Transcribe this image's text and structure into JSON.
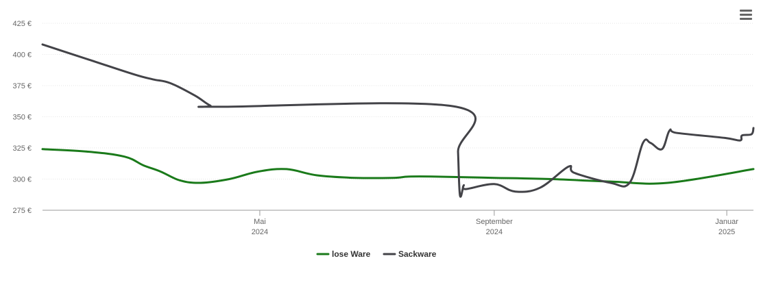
{
  "chart_data": {
    "type": "line",
    "y_ticks": [
      275,
      300,
      325,
      350,
      375,
      400,
      425
    ],
    "y_tick_labels": [
      "275 €",
      "300 €",
      "325 €",
      "350 €",
      "375 €",
      "400 €",
      "425 €"
    ],
    "ylim": [
      275,
      425
    ],
    "x_range": [
      "2024-01-08",
      "2025-01-15"
    ],
    "x_ticks": [
      {
        "date": "2024-05-01",
        "line1": "Mai",
        "line2": "2024"
      },
      {
        "date": "2024-09-01",
        "line1": "September",
        "line2": "2024"
      },
      {
        "date": "2025-01-01",
        "line1": "Januar",
        "line2": "2025"
      }
    ],
    "grid": true,
    "legend_position": "bottom-center",
    "series": [
      {
        "name": "lose Ware",
        "color": "#1a7a1a",
        "points": [
          [
            "2024-01-08",
            324
          ],
          [
            "2024-02-01",
            322
          ],
          [
            "2024-02-20",
            318
          ],
          [
            "2024-03-01",
            311
          ],
          [
            "2024-03-10",
            306
          ],
          [
            "2024-03-20",
            299
          ],
          [
            "2024-03-31",
            297
          ],
          [
            "2024-04-15",
            300
          ],
          [
            "2024-04-30",
            306
          ],
          [
            "2024-05-15",
            308
          ],
          [
            "2024-05-31",
            303
          ],
          [
            "2024-06-20",
            301
          ],
          [
            "2024-07-10",
            301
          ],
          [
            "2024-07-18",
            302
          ],
          [
            "2024-08-01",
            302
          ],
          [
            "2024-09-01",
            301
          ],
          [
            "2024-10-01",
            300
          ],
          [
            "2024-11-01",
            298
          ],
          [
            "2024-12-01",
            297
          ],
          [
            "2025-01-15",
            308
          ]
        ]
      },
      {
        "name": "Sackware",
        "color": "#434348",
        "points": [
          [
            "2024-01-08",
            408
          ],
          [
            "2024-02-01",
            396
          ],
          [
            "2024-02-25",
            384
          ],
          [
            "2024-03-06",
            380
          ],
          [
            "2024-03-15",
            377
          ],
          [
            "2024-03-28",
            367
          ],
          [
            "2024-04-05",
            359
          ],
          [
            "2024-04-10",
            358
          ],
          [
            "2024-08-12",
            358
          ],
          [
            "2024-08-13",
            322
          ],
          [
            "2024-08-14",
            287
          ],
          [
            "2024-08-16",
            295
          ],
          [
            "2024-08-17",
            292
          ],
          [
            "2024-09-01",
            296
          ],
          [
            "2024-09-12",
            290
          ],
          [
            "2024-09-25",
            293
          ],
          [
            "2024-10-10",
            310
          ],
          [
            "2024-10-13",
            305
          ],
          [
            "2024-11-01",
            297
          ],
          [
            "2024-11-11",
            297
          ],
          [
            "2024-11-18",
            329
          ],
          [
            "2024-11-22",
            329
          ],
          [
            "2024-11-28",
            324
          ],
          [
            "2024-12-02",
            339
          ],
          [
            "2024-12-06",
            337
          ],
          [
            "2024-12-31",
            333
          ],
          [
            "2025-01-08",
            331
          ],
          [
            "2025-01-09",
            335
          ],
          [
            "2025-01-14",
            336
          ],
          [
            "2025-01-15",
            341
          ]
        ]
      }
    ]
  }
}
